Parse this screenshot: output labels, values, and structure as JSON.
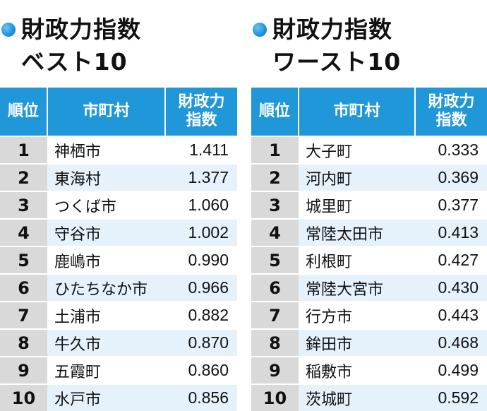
{
  "best": {
    "title_line1": "財政力指数",
    "title_line2": "ベスト10",
    "headers": {
      "rank": "順位",
      "city": "市町村",
      "index": "財政力\n指数"
    },
    "rows": [
      {
        "rank": "1",
        "city": "神栖市",
        "value": "1.411"
      },
      {
        "rank": "2",
        "city": "東海村",
        "value": "1.377"
      },
      {
        "rank": "3",
        "city": "つくば市",
        "value": "1.060"
      },
      {
        "rank": "4",
        "city": "守谷市",
        "value": "1.002"
      },
      {
        "rank": "5",
        "city": "鹿嶋市",
        "value": "0.990"
      },
      {
        "rank": "6",
        "city": "ひたちなか市",
        "value": "0.966"
      },
      {
        "rank": "7",
        "city": "土浦市",
        "value": "0.882"
      },
      {
        "rank": "8",
        "city": "牛久市",
        "value": "0.870"
      },
      {
        "rank": "9",
        "city": "五霞町",
        "value": "0.860"
      },
      {
        "rank": "10",
        "city": "水戸市",
        "value": "0.856"
      }
    ]
  },
  "worst": {
    "title_line1": "財政力指数",
    "title_line2": "ワースト10",
    "headers": {
      "rank": "順位",
      "city": "市町村",
      "index": "財政力\n指数"
    },
    "rows": [
      {
        "rank": "1",
        "city": "大子町",
        "value": "0.333"
      },
      {
        "rank": "2",
        "city": "河内町",
        "value": "0.369"
      },
      {
        "rank": "3",
        "city": "城里町",
        "value": "0.377"
      },
      {
        "rank": "4",
        "city": "常陸太田市",
        "value": "0.413"
      },
      {
        "rank": "5",
        "city": "利根町",
        "value": "0.427"
      },
      {
        "rank": "6",
        "city": "常陸大宮市",
        "value": "0.430"
      },
      {
        "rank": "7",
        "city": "行方市",
        "value": "0.443"
      },
      {
        "rank": "8",
        "city": "鉾田市",
        "value": "0.468"
      },
      {
        "rank": "9",
        "city": "稲敷市",
        "value": "0.499"
      },
      {
        "rank": "10",
        "city": "茨城町",
        "value": "0.592"
      }
    ]
  }
}
